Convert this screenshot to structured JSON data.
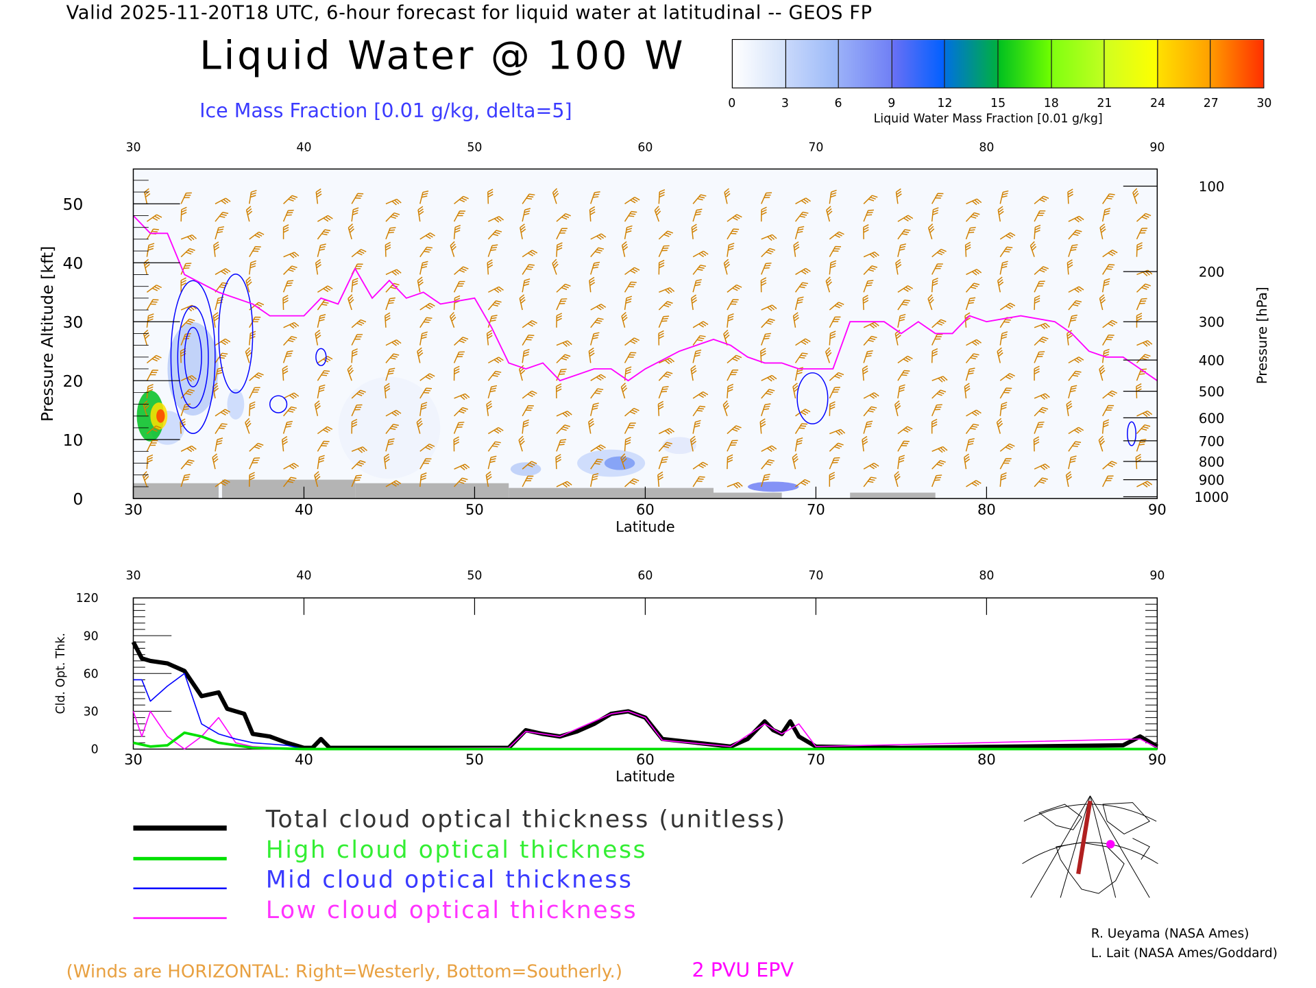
{
  "header": {
    "title_line": "Valid 2025-11-20T18 UTC, 6-hour forecast for liquid water at latitudinal -- GEOS FP",
    "main_title": "Liquid Water @ 100 W",
    "subtitle": "Ice Mass Fraction [0.01 g/kg, delta=5]"
  },
  "colorbar": {
    "labels": [
      "0",
      "3",
      "6",
      "9",
      "12",
      "15",
      "18",
      "21",
      "24",
      "27",
      "30"
    ],
    "caption": "Liquid Water Mass Fraction [0.01 g/kg]",
    "colors": [
      [
        "#ffffff",
        "#d4e2fa"
      ],
      [
        "#c8d8fb",
        "#9ab8f8"
      ],
      [
        "#9ab0f8",
        "#7080f5"
      ],
      [
        "#6a70f5",
        "#0060ff"
      ],
      [
        "#0070e0",
        "#00b040"
      ],
      [
        "#00c020",
        "#70ff00"
      ],
      [
        "#80ff10",
        "#c0ff20"
      ],
      [
        "#d0ff20",
        "#ffff00"
      ],
      [
        "#ffe000",
        "#ffa000"
      ],
      [
        "#ff9a00",
        "#ff3000"
      ]
    ]
  },
  "chart_data": [
    {
      "type": "line",
      "title": "Liquid Water @ 100 W",
      "xlabel": "Latitude",
      "ylabel": "Pressure Altitude [kft]",
      "y2label": "Pressure [hPa]",
      "xlim": [
        30,
        90
      ],
      "ylim": [
        0,
        55
      ],
      "xticks": [
        "30",
        "40",
        "50",
        "60",
        "70",
        "80",
        "90"
      ],
      "yticks": [
        "0",
        "10",
        "20",
        "30",
        "40",
        "50"
      ],
      "pressure_ticks": [
        {
          "label": "100",
          "kft": 53
        },
        {
          "label": "200",
          "kft": 38.5
        },
        {
          "label": "300",
          "kft": 30
        },
        {
          "label": "400",
          "kft": 23.5
        },
        {
          "label": "500",
          "kft": 18.2
        },
        {
          "label": "600",
          "kft": 13.7
        },
        {
          "label": "700",
          "kft": 9.8
        },
        {
          "label": "800",
          "kft": 6.3
        },
        {
          "label": "900",
          "kft": 3.2
        },
        {
          "label": "1000",
          "kft": 0.3
        }
      ],
      "series": [
        {
          "name": "2 PVU EPV",
          "color": "#ff00ff",
          "x": [
            30,
            31,
            32,
            33,
            35,
            37,
            38,
            39,
            40,
            41,
            42,
            43,
            44,
            45,
            46,
            47,
            48,
            50,
            51,
            52,
            53,
            54,
            55,
            56,
            57,
            58,
            59,
            60,
            62,
            63,
            64,
            65,
            66,
            67,
            68,
            69,
            71,
            72,
            74,
            75,
            76,
            77,
            78,
            79,
            80,
            82,
            84,
            85,
            86,
            87,
            88,
            89,
            90
          ],
          "y": [
            48,
            45,
            45,
            38,
            35,
            33,
            31,
            31,
            31,
            34,
            33,
            39,
            34,
            37,
            34,
            35,
            33,
            34,
            29,
            23,
            22,
            23,
            20,
            21,
            22,
            22,
            20,
            22,
            25,
            26,
            27,
            26,
            24,
            23,
            23,
            22,
            22,
            30,
            30,
            28,
            30,
            28,
            28,
            31,
            30,
            31,
            30,
            28,
            25,
            24,
            24,
            22,
            20
          ]
        }
      ]
    },
    {
      "type": "line",
      "xlabel": "Latitude",
      "ylabel": "Cld. Opt. Thk.",
      "xlim": [
        30,
        90
      ],
      "ylim": [
        0,
        120
      ],
      "xticks": [
        "30",
        "40",
        "50",
        "60",
        "70",
        "80",
        "90"
      ],
      "yticks": [
        "0",
        "30",
        "60",
        "90",
        "120"
      ],
      "series": [
        {
          "name": "Total cloud optical thickness (unitless)",
          "color": "#000000",
          "x": [
            30,
            30.5,
            31,
            32,
            33,
            34,
            35,
            35.5,
            36,
            36.5,
            37,
            38,
            39,
            40,
            40.5,
            41,
            41.5,
            42,
            50,
            52,
            53,
            54,
            55,
            56,
            57,
            58,
            59,
            60,
            61,
            63,
            65,
            66,
            67,
            67.5,
            68,
            68.5,
            69,
            70,
            75,
            88,
            89,
            90
          ],
          "y": [
            85,
            72,
            70,
            68,
            62,
            42,
            45,
            32,
            30,
            28,
            12,
            10,
            5,
            1,
            1,
            8,
            1,
            1,
            1,
            1,
            15,
            12,
            10,
            14,
            20,
            28,
            30,
            25,
            8,
            5,
            2,
            8,
            22,
            15,
            12,
            22,
            10,
            2,
            1,
            3,
            10,
            2
          ]
        },
        {
          "name": "High cloud optical thickness",
          "color": "#00e000",
          "x": [
            30,
            31,
            32,
            33,
            34,
            35,
            36,
            37,
            40,
            90
          ],
          "y": [
            5,
            2,
            3,
            13,
            10,
            5,
            3,
            1,
            0,
            0
          ]
        },
        {
          "name": "Mid cloud optical thickness",
          "color": "#0000ff",
          "x": [
            30,
            30.5,
            31,
            32,
            33,
            34,
            35,
            36,
            37,
            39,
            40,
            90
          ],
          "y": [
            55,
            55,
            38,
            50,
            60,
            20,
            12,
            8,
            5,
            3,
            0,
            0
          ]
        },
        {
          "name": "Low cloud optical thickness",
          "color": "#ff00ff",
          "x": [
            30,
            30.5,
            31,
            32,
            33,
            34,
            35,
            36,
            37,
            40,
            52,
            53,
            55,
            58,
            59,
            60,
            61,
            65,
            67,
            68,
            69,
            70,
            89,
            90
          ],
          "y": [
            30,
            10,
            30,
            10,
            0,
            10,
            25,
            5,
            2,
            0,
            1,
            14,
            10,
            28,
            30,
            25,
            7,
            2,
            20,
            12,
            20,
            2,
            8,
            1
          ]
        }
      ]
    }
  ],
  "legend": [
    {
      "label": "Total cloud optical thickness (unitless)",
      "color": "#000000"
    },
    {
      "label": "High cloud optical thickness",
      "color": "#00e000"
    },
    {
      "label": "Mid cloud optical thickness",
      "color": "#0000ff"
    },
    {
      "label": "Low cloud optical thickness",
      "color": "#ff00ff"
    }
  ],
  "credits": [
    "R. Ueyama (NASA Ames)",
    "L. Lait (NASA Ames/Goddard)"
  ],
  "footer": {
    "winds_note": "(Winds are HORIZONTAL: Right=Westerly, Bottom=Southerly.)",
    "pvu_label": "2 PVU EPV"
  }
}
